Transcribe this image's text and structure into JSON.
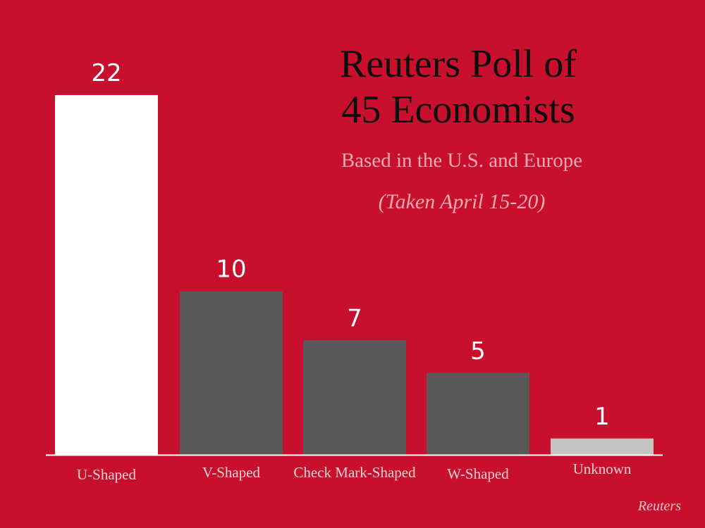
{
  "chart_data": {
    "type": "bar",
    "title": "Reuters Poll of 45 Economists",
    "title_lines": [
      "Reuters Poll of",
      "45 Economists"
    ],
    "subtitle": "Based in the U.S. and Europe",
    "note": "(Taken April 15-20)",
    "source": "Reuters",
    "categories": [
      "U-Shaped",
      "V-Shaped",
      "Check Mark-Shaped",
      "W-Shaped",
      "Unknown"
    ],
    "values": [
      22,
      10,
      7,
      5,
      1
    ],
    "bar_colors": [
      "#ffffff",
      "#595959",
      "#595959",
      "#595959",
      "#c4c4c4"
    ],
    "ylim": [
      0,
      22
    ],
    "grid": false,
    "legend": "none"
  },
  "colors": {
    "background": "#c8102e",
    "baseline": "#ffffff"
  }
}
